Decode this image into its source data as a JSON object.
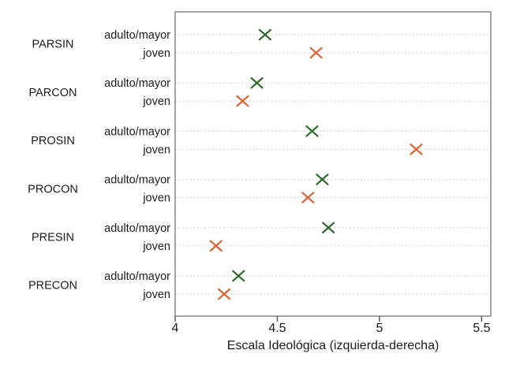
{
  "figure": {
    "background": "#ffffff",
    "text_color": "#1a1a1a"
  },
  "chart_data": {
    "type": "scatter",
    "title": "",
    "xlabel": "Escala Ideológica (izquierda-derecha)",
    "ylabel": "",
    "xlim": [
      4,
      5.545
    ],
    "xticks": [
      {
        "value": 4,
        "label": "4"
      },
      {
        "value": 4.5,
        "label": "4.5"
      },
      {
        "value": 5,
        "label": "5"
      },
      {
        "value": 5.5,
        "label": "5.5"
      }
    ],
    "groups": [
      "PARSIN",
      "PARCON",
      "PROSIN",
      "PROCON",
      "PRESIN",
      "PRECON"
    ],
    "row_labels": [
      "adulto/mayor",
      "joven"
    ],
    "series": [
      {
        "name": "adulto/mayor",
        "marker": "x",
        "color": "#2d682d",
        "values": [
          4.44,
          4.4,
          4.67,
          4.72,
          4.75,
          4.31
        ]
      },
      {
        "name": "joven",
        "marker": "x",
        "color": "#d9622e",
        "values": [
          4.69,
          4.33,
          5.18,
          4.65,
          4.2,
          4.24
        ]
      }
    ],
    "grid": {
      "horizontal": true,
      "style": "dotted",
      "color": "#c6c6c6"
    },
    "frame_color": "#8c8c8c",
    "legend_position": "none"
  }
}
